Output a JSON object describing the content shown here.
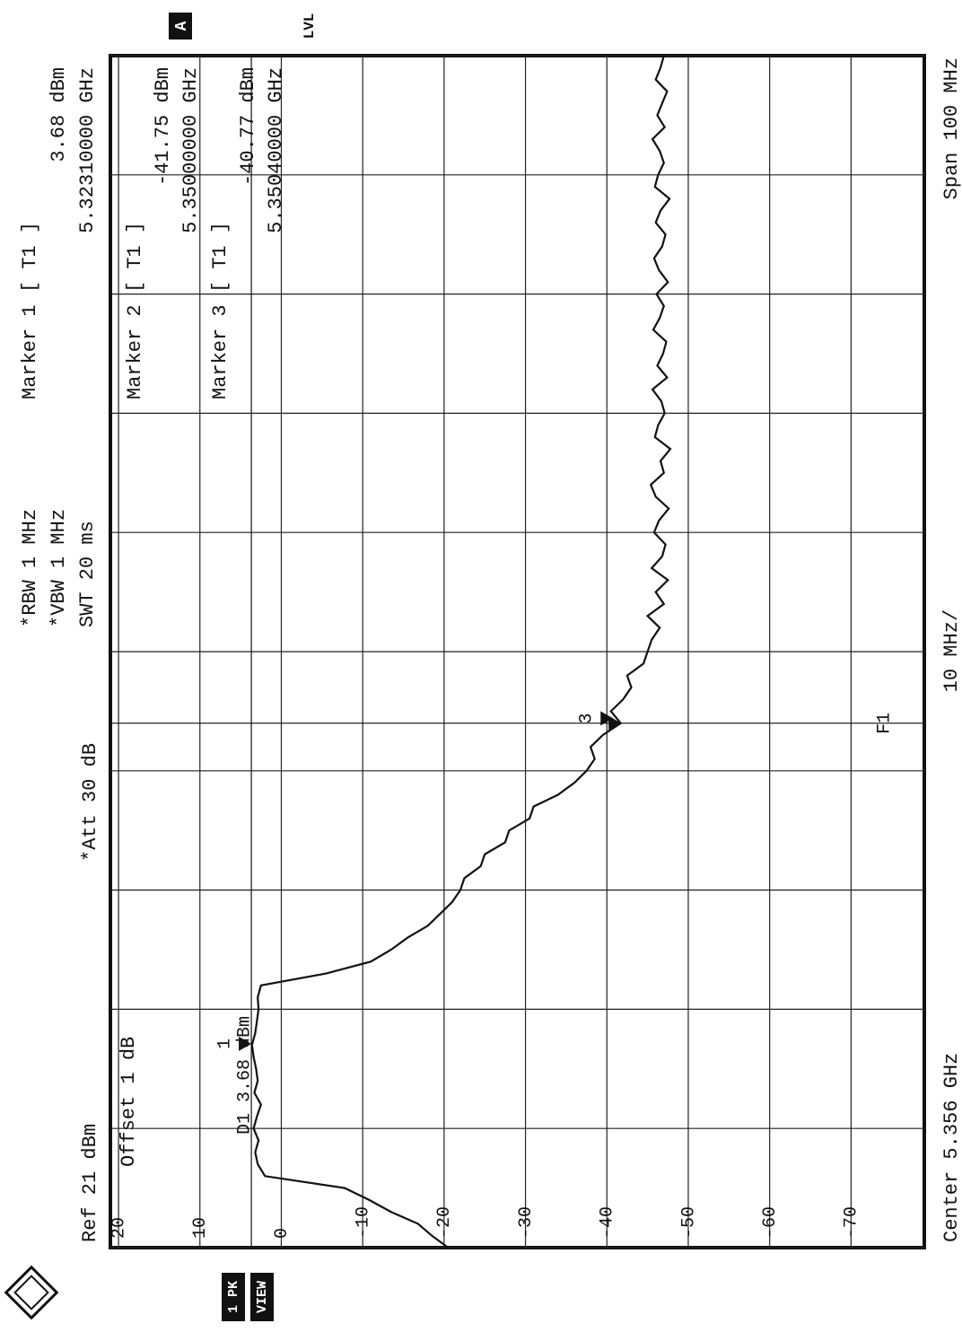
{
  "chart_data": {
    "type": "line",
    "ref": "Ref 21 dBm",
    "offset": "Offset 1 dB",
    "att": "*Att 30 dB",
    "rbw": "*RBW 1 MHz",
    "vbw": "*VBW 1 MHz",
    "swt": "SWT 20 ms",
    "center": "Center 5.356 GHz",
    "per_div": "10 MHz/",
    "span": "Span 100 MHz",
    "trace_badge": "A",
    "level_badge": "LVL",
    "trace_mode": [
      "1 PK",
      "VIEW"
    ],
    "xlim": [
      5.306,
      5.406
    ],
    "ylim": [
      -79,
      21
    ],
    "xticks": [
      5.306,
      5.316,
      5.326,
      5.336,
      5.346,
      5.356,
      5.366,
      5.376,
      5.386,
      5.396,
      5.406
    ],
    "yticks": [
      20,
      10,
      0,
      -10,
      -20,
      -30,
      -40,
      -50,
      -60,
      -70
    ],
    "grid": true,
    "color": "#111111",
    "x": [
      5.306,
      5.307,
      5.308,
      5.309,
      5.31,
      5.311,
      5.312,
      5.313,
      5.314,
      5.315,
      5.316,
      5.317,
      5.318,
      5.319,
      5.32,
      5.321,
      5.322,
      5.323,
      5.324,
      5.325,
      5.326,
      5.327,
      5.328,
      5.329,
      5.33,
      5.331,
      5.332,
      5.333,
      5.334,
      5.335,
      5.336,
      5.337,
      5.338,
      5.339,
      5.34,
      5.341,
      5.342,
      5.343,
      5.344,
      5.345,
      5.346,
      5.347,
      5.348,
      5.349,
      5.35,
      5.351,
      5.352,
      5.353,
      5.354,
      5.355,
      5.356,
      5.357,
      5.358,
      5.359,
      5.36,
      5.361,
      5.362,
      5.363,
      5.364,
      5.365,
      5.366,
      5.367,
      5.368,
      5.369,
      5.37,
      5.371,
      5.372,
      5.373,
      5.374,
      5.375,
      5.376,
      5.377,
      5.378,
      5.379,
      5.38,
      5.381,
      5.382,
      5.383,
      5.384,
      5.385,
      5.386,
      5.387,
      5.388,
      5.389,
      5.39,
      5.391,
      5.392,
      5.393,
      5.394,
      5.395,
      5.396,
      5.397,
      5.398,
      5.399,
      5.4,
      5.401,
      5.402,
      5.403,
      5.404,
      5.405,
      5.406
    ],
    "values": [
      -20.5,
      -18.5,
      -16.8,
      -13.5,
      -10.8,
      -7.8,
      2.0,
      2.9,
      3.2,
      2.8,
      3.4,
      3.0,
      2.5,
      3.3,
      2.9,
      3.1,
      3.4,
      3.6,
      3.2,
      3.0,
      2.8,
      2.9,
      2.5,
      -5.5,
      -11.0,
      -13.5,
      -15.5,
      -18.0,
      -19.5,
      -21.0,
      -22.0,
      -22.5,
      -24.5,
      -25.0,
      -27.5,
      -28.0,
      -30.5,
      -31.0,
      -34.0,
      -36.0,
      -37.5,
      -38.5,
      -38.0,
      -39.5,
      -41.7,
      -40.5,
      -42.0,
      -43.0,
      -42.5,
      -44.5,
      -45.0,
      -45.5,
      -46.5,
      -45.0,
      -47.0,
      -46.0,
      -47.5,
      -45.5,
      -46.8,
      -47.2,
      -45.8,
      -46.4,
      -47.6,
      -46.0,
      -45.4,
      -47.0,
      -46.6,
      -47.8,
      -45.9,
      -46.3,
      -47.1,
      -46.7,
      -45.6,
      -47.4,
      -46.2,
      -46.9,
      -47.3,
      -45.7,
      -46.5,
      -47.0,
      -46.1,
      -47.5,
      -46.4,
      -45.8,
      -46.8,
      -47.2,
      -46.0,
      -46.6,
      -47.7,
      -45.9,
      -46.3,
      -47.0,
      -46.5,
      -45.6,
      -47.1,
      -46.2,
      -46.8,
      -47.4,
      -46.0,
      -46.6,
      -47.0
    ],
    "markers": [
      {
        "name": "Marker 1 [ T1 ]",
        "symbol": "1",
        "level": 3.68,
        "level_label": "3.68 dBm",
        "freq": 5.3231,
        "freq_label": "5.32310000 GHz"
      },
      {
        "name": "Marker 2 [ T1 ]",
        "level": -41.75,
        "level_label": "-41.75 dBm",
        "freq": 5.35,
        "freq_label": "5.35000000 GHz"
      },
      {
        "name": "Marker 3 [ T1 ]",
        "symbol": "3",
        "level": -40.77,
        "level_label": "-40.77 dBm",
        "freq": 5.3504,
        "freq_label": "5.35040000 GHz"
      }
    ],
    "display_line": {
      "label": "D1 3.68 dBm",
      "value": 3.68
    },
    "freq_line": {
      "label": "F1",
      "value": 5.35
    }
  }
}
